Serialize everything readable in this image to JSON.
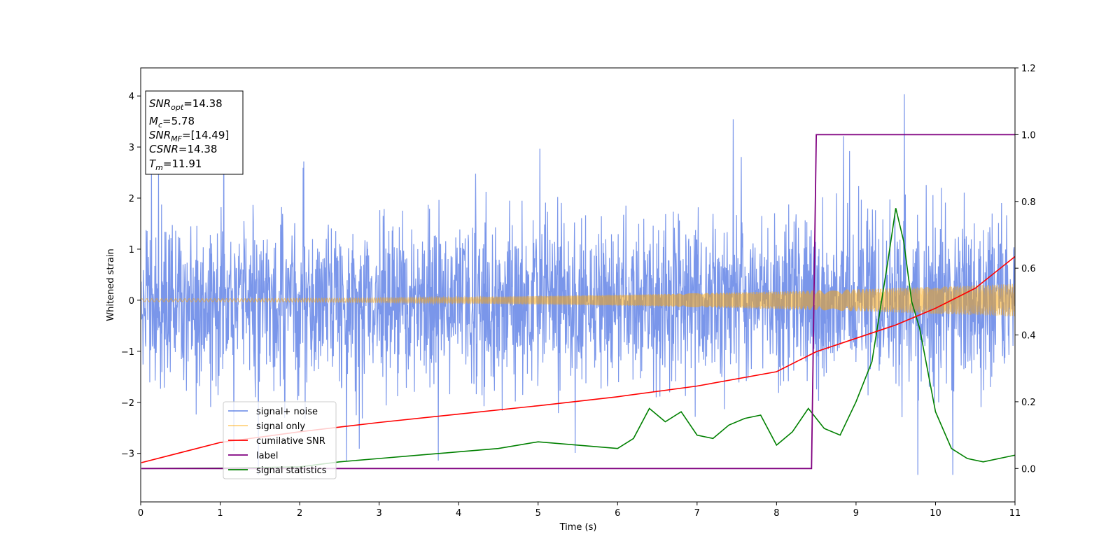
{
  "chart_data": {
    "type": "line",
    "xlabel": "Time (s)",
    "ylabel": "Whitened strain",
    "xlim": [
      0,
      11
    ],
    "ylim_left": [
      -3.95,
      4.55
    ],
    "ylim_right": [
      -0.1,
      1.2
    ],
    "x_ticks": [
      0,
      1,
      2,
      3,
      4,
      5,
      6,
      7,
      8,
      9,
      10,
      11
    ],
    "y_ticks_left": [
      -3,
      -2,
      -1,
      0,
      1,
      2,
      3,
      4
    ],
    "y_ticks_right": [
      0.0,
      0.2,
      0.4,
      0.6,
      0.8,
      1.0,
      1.2
    ],
    "y_tick_labels_left": [
      "−3",
      "−2",
      "−1",
      "0",
      "1",
      "2",
      "3",
      "4"
    ],
    "y_tick_labels_right": [
      "0.0",
      "0.2",
      "0.4",
      "0.6",
      "0.8",
      "1.0",
      "1.2"
    ],
    "grid": false,
    "legend_position": "lower-left",
    "info_box": [
      {
        "base": "SNR",
        "sub": "opt",
        "rest": "=14.38"
      },
      {
        "base": "M",
        "sub": "c",
        "rest": "=5.78"
      },
      {
        "base": "SNR",
        "sub": "MF",
        "rest": "=[14.49]"
      },
      {
        "base": "CSNR",
        "sub": "",
        "rest": "=14.38"
      },
      {
        "base": "T",
        "sub": "m",
        "rest": "=11.91"
      }
    ],
    "series": [
      {
        "name": "signal+ noise",
        "axis": "left",
        "color": "#4169e1",
        "kind": "noise",
        "std": 0.82,
        "max": 4.15,
        "min": -3.42
      },
      {
        "name": "signal only",
        "axis": "left",
        "color": "#ffa500",
        "kind": "chirp",
        "amplitude_start": 0.03,
        "amplitude_end": 0.32
      },
      {
        "name": "cumilative SNR",
        "axis": "right",
        "color": "#ff0000",
        "kind": "curve",
        "x": [
          0,
          1,
          2,
          3,
          4,
          5,
          6,
          7,
          8,
          8.5,
          9,
          9.5,
          10,
          10.5,
          11
        ],
        "y": [
          0.017,
          0.078,
          0.11,
          0.138,
          0.163,
          0.188,
          0.215,
          0.247,
          0.29,
          0.35,
          0.39,
          0.43,
          0.48,
          0.54,
          0.635
        ]
      },
      {
        "name": "label",
        "axis": "right",
        "color": "#800080",
        "kind": "step",
        "x": [
          0,
          8.44,
          8.5,
          11
        ],
        "y": [
          0,
          0,
          1,
          1
        ]
      },
      {
        "name": "signal statistics",
        "axis": "right",
        "color": "#008000",
        "kind": "curve",
        "x": [
          0,
          1,
          2,
          2.5,
          3,
          3.5,
          4,
          4.5,
          5,
          5.5,
          6,
          6.2,
          6.4,
          6.6,
          6.8,
          7,
          7.2,
          7.4,
          7.6,
          7.8,
          8,
          8.2,
          8.4,
          8.6,
          8.8,
          9,
          9.2,
          9.4,
          9.5,
          9.6,
          9.7,
          9.8,
          10,
          10.2,
          10.4,
          10.6,
          11
        ],
        "y": [
          0.0,
          0.001,
          0.005,
          0.02,
          0.03,
          0.04,
          0.05,
          0.06,
          0.08,
          0.07,
          0.06,
          0.09,
          0.18,
          0.14,
          0.17,
          0.1,
          0.09,
          0.13,
          0.15,
          0.16,
          0.07,
          0.11,
          0.18,
          0.12,
          0.1,
          0.2,
          0.32,
          0.62,
          0.78,
          0.68,
          0.5,
          0.42,
          0.17,
          0.06,
          0.03,
          0.02,
          0.04
        ]
      }
    ]
  }
}
